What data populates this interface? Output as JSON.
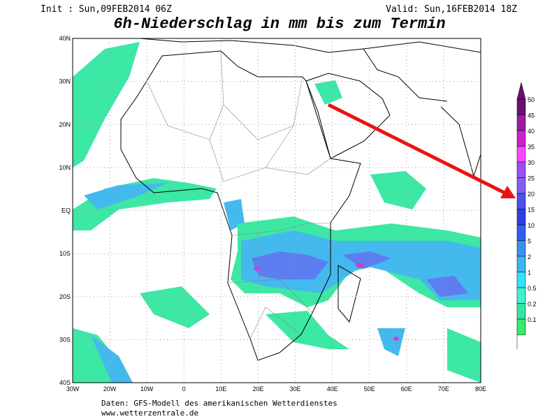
{
  "header": {
    "init": "Init : Sun,09FEB2014 06Z",
    "valid": "Valid: Sun,16FEB2014 18Z",
    "title": "6h-Niederschlag in mm bis zum Termin"
  },
  "map": {
    "lat_labels": [
      "40N",
      "30N",
      "20N",
      "10N",
      "EQ",
      "10S",
      "20S",
      "30S",
      "40S"
    ],
    "lon_labels": [
      "30W",
      "20W",
      "10W",
      "0",
      "10E",
      "20E",
      "30E",
      "40E",
      "50E",
      "60E",
      "70E",
      "80E"
    ]
  },
  "legend": {
    "labels": [
      "50",
      "45",
      "40",
      "35",
      "30",
      "25",
      "20",
      "15",
      "10",
      "5",
      "2",
      "1",
      "0.5",
      "0.2",
      "0.1"
    ]
  },
  "footer": {
    "source": "Daten: GFS-Modell des amerikanischen Wetterdienstes",
    "url": "www.wetterzentrale.de"
  }
}
